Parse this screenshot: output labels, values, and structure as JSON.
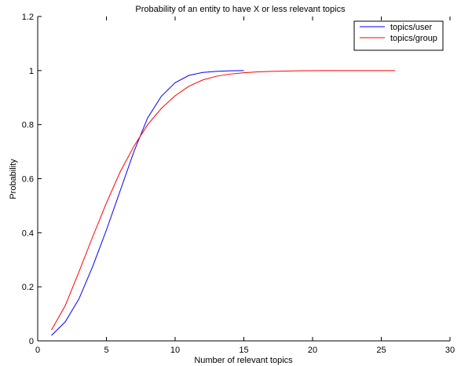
{
  "chart_data": {
    "type": "line",
    "title": "Probability of an entity to have X or less relevant topics",
    "xlabel": "Number of relevant topics",
    "ylabel": "Probability",
    "xlim": [
      0,
      30
    ],
    "ylim": [
      0,
      1.2
    ],
    "xticks": [
      0,
      5,
      10,
      15,
      20,
      25,
      30
    ],
    "yticks": [
      0,
      0.2,
      0.4,
      0.6,
      0.8,
      1,
      1.2
    ],
    "xtick_labels": [
      "0",
      "5",
      "10",
      "15",
      "20",
      "25",
      "30"
    ],
    "ytick_labels": [
      "0",
      "0.2",
      "0.4",
      "0.6",
      "0.8",
      "1",
      "1.2"
    ],
    "grid": false,
    "legend": "top-right",
    "series": [
      {
        "name": "topics/user",
        "color": "#0000ff",
        "x": [
          1,
          2,
          3,
          4,
          5,
          6,
          7,
          8,
          9,
          10,
          11,
          12,
          13,
          14,
          15
        ],
        "y": [
          0.02,
          0.07,
          0.155,
          0.275,
          0.41,
          0.555,
          0.7,
          0.825,
          0.905,
          0.955,
          0.982,
          0.993,
          0.997,
          0.999,
          1.0
        ]
      },
      {
        "name": "topics/group",
        "color": "#ff0000",
        "x": [
          1,
          2,
          3,
          4,
          5,
          6,
          7,
          8,
          9,
          10,
          11,
          12,
          13,
          14,
          15,
          16,
          17,
          18,
          19,
          20,
          21,
          22,
          23,
          24,
          25,
          26
        ],
        "y": [
          0.04,
          0.13,
          0.255,
          0.385,
          0.51,
          0.625,
          0.72,
          0.8,
          0.86,
          0.907,
          0.942,
          0.965,
          0.979,
          0.987,
          0.992,
          0.995,
          0.997,
          0.998,
          0.999,
          0.9995,
          1.0,
          1.0,
          1.0,
          1.0,
          1.0,
          1.0
        ]
      }
    ]
  }
}
